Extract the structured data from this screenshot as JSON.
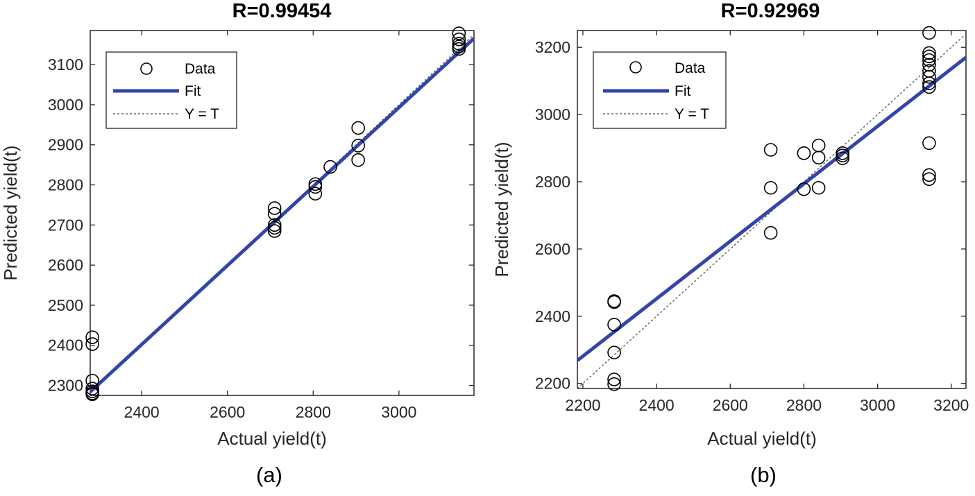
{
  "colors": {
    "fit": "#3344aa",
    "ideal": "#666666",
    "marker": "#000000",
    "axis": "#262626"
  },
  "chart_data": [
    {
      "type": "scatter",
      "panel": "(a)",
      "title": "R=0.99454",
      "xlabel": "Actual yield(t)",
      "ylabel": "Predicted yield(t)",
      "xlim": [
        2280,
        3175
      ],
      "ylim": [
        2275,
        3185
      ],
      "xticks": [
        2400,
        2600,
        2800,
        3000
      ],
      "yticks": [
        2300,
        2400,
        2500,
        2600,
        2700,
        2800,
        2900,
        3000,
        3100
      ],
      "legend": {
        "position": "top-left",
        "entries": [
          "Data",
          "Fit",
          "Y = T"
        ]
      },
      "fit": {
        "slope": 0.985,
        "intercept": 38
      },
      "series": [
        {
          "name": "Data",
          "x": [
            2285,
            2285,
            2285,
            2285,
            2285,
            2285,
            2285,
            2710,
            2710,
            2710,
            2710,
            2710,
            2805,
            2805,
            2805,
            2840,
            2905,
            2905,
            2905,
            3140,
            3140,
            3140,
            3140,
            3140
          ],
          "y": [
            2420,
            2403,
            2312,
            2292,
            2285,
            2280,
            2278,
            2742,
            2728,
            2700,
            2693,
            2685,
            2802,
            2795,
            2778,
            2845,
            2942,
            2898,
            2862,
            3178,
            3163,
            3152,
            3145,
            3139
          ]
        },
        {
          "name": "Fit",
          "x": [
            2280,
            3175
          ],
          "y": [
            2283.8,
            3165.4
          ]
        },
        {
          "name": "Y = T",
          "x": [
            2280,
            3175
          ],
          "y": [
            2280,
            3175
          ]
        }
      ]
    },
    {
      "type": "scatter",
      "panel": "(b)",
      "title": "R=0.92969",
      "xlabel": "Actual yield(t)",
      "ylabel": "Predicted yield(t)",
      "xlim": [
        2185,
        3240
      ],
      "ylim": [
        2185,
        3250
      ],
      "xticks": [
        2200,
        2400,
        2600,
        2800,
        3000,
        3200
      ],
      "yticks": [
        2200,
        2400,
        2600,
        2800,
        3000,
        3200
      ],
      "legend": {
        "position": "top-left",
        "entries": [
          "Data",
          "Fit",
          "Y = T"
        ]
      },
      "fit": {
        "slope": 0.855,
        "intercept": 400
      },
      "series": [
        {
          "name": "Data",
          "x": [
            2285,
            2285,
            2285,
            2285,
            2285,
            2285,
            2710,
            2710,
            2710,
            2800,
            2800,
            2840,
            2840,
            2840,
            2905,
            2905,
            2905,
            3140,
            3140,
            3140,
            3140,
            3140,
            3140,
            3140,
            3140,
            3140,
            3140,
            3140,
            3140
          ],
          "y": [
            2445,
            2442,
            2375,
            2292,
            2212,
            2198,
            2895,
            2782,
            2648,
            2885,
            2778,
            2908,
            2872,
            2782,
            2885,
            2878,
            2870,
            3243,
            3183,
            3173,
            3162,
            3148,
            3130,
            3112,
            3093,
            3082,
            2915,
            2820,
            2808
          ]
        },
        {
          "name": "Fit",
          "x": [
            2185,
            3240
          ],
          "y": [
            2268.2,
            3170.2
          ]
        },
        {
          "name": "Y = T",
          "x": [
            2185,
            3240
          ],
          "y": [
            2185,
            3240
          ]
        }
      ]
    }
  ]
}
